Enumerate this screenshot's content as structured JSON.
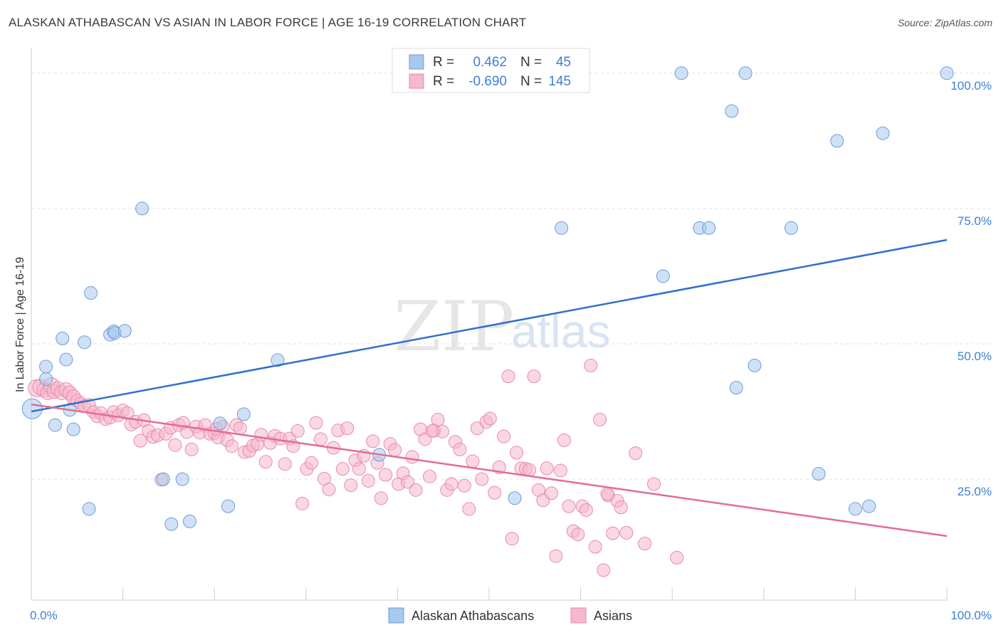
{
  "title": "ALASKAN ATHABASCAN VS ASIAN IN LABOR FORCE | AGE 16-19 CORRELATION CHART",
  "source": "Source: ZipAtlas.com",
  "watermark": {
    "zip": "ZIP",
    "atlas": "atlas"
  },
  "stats": {
    "r_label": "R =",
    "n_label": "N =",
    "series1": {
      "r": "0.462",
      "n": "45"
    },
    "series2": {
      "r": "-0.690",
      "n": "145"
    }
  },
  "colors": {
    "blue_fill": "#a9c8ee",
    "blue_stroke": "#6a9ed8",
    "blue_line": "#2f6fcf",
    "pink_fill": "#f6b8cc",
    "pink_stroke": "#e98aa9",
    "pink_line": "#e46a95",
    "tick_text": "#3d7fd6",
    "grid": "#e2e2e2"
  },
  "chart_data": {
    "type": "scatter",
    "title": "ALASKAN ATHABASCAN VS ASIAN IN LABOR FORCE | AGE 16-19 CORRELATION CHART",
    "xlabel": "",
    "ylabel": "In Labor Force | Age 16-19",
    "xlim": [
      0,
      100
    ],
    "ylim": [
      2,
      103
    ],
    "x_tick_labels": [
      "0.0%",
      "100.0%"
    ],
    "y_ticks": [
      25,
      50,
      75,
      100
    ],
    "y_tick_labels": [
      "25.0%",
      "50.0%",
      "75.0%",
      "100.0%"
    ],
    "legend": [
      "Alaskan Athabascans",
      "Asians"
    ],
    "series": [
      {
        "name": "Alaskan Athabascans",
        "color": "#a9c8ee",
        "trend": {
          "x0": 0,
          "y0": 37.5,
          "x1": 100,
          "y1": 69.2
        },
        "points": [
          [
            0.1,
            38.0,
            14
          ],
          [
            1.6,
            45.8,
            9
          ],
          [
            1.6,
            43.5,
            9
          ],
          [
            2.6,
            35.0,
            9
          ],
          [
            3.4,
            51.0,
            9
          ],
          [
            3.8,
            47.1,
            9
          ],
          [
            4.2,
            37.8,
            9
          ],
          [
            4.6,
            34.2,
            9
          ],
          [
            5.8,
            50.3,
            9
          ],
          [
            6.3,
            19.5,
            9
          ],
          [
            6.5,
            59.4,
            9
          ],
          [
            8.6,
            51.7,
            9
          ],
          [
            9.0,
            52.3,
            9
          ],
          [
            9.1,
            52.0,
            9
          ],
          [
            10.2,
            52.4,
            9
          ],
          [
            12.1,
            75.0,
            9
          ],
          [
            14.4,
            25.0,
            9
          ],
          [
            15.3,
            16.7,
            9
          ],
          [
            16.5,
            25.0,
            9
          ],
          [
            17.3,
            17.2,
            9
          ],
          [
            20.6,
            35.3,
            9
          ],
          [
            21.5,
            20.0,
            9
          ],
          [
            23.2,
            37.0,
            9
          ],
          [
            26.9,
            47.0,
            9
          ],
          [
            38.0,
            29.5,
            9
          ],
          [
            52.8,
            21.5,
            9
          ],
          [
            57.9,
            71.4,
            9
          ],
          [
            69.0,
            62.5,
            9
          ],
          [
            71.0,
            100.0,
            9
          ],
          [
            73.0,
            71.4,
            9
          ],
          [
            74.0,
            71.4,
            9
          ],
          [
            76.5,
            93.0,
            9
          ],
          [
            77.0,
            41.9,
            9
          ],
          [
            78.0,
            100.0,
            9
          ],
          [
            79.0,
            46.0,
            9
          ],
          [
            83.0,
            71.4,
            9
          ],
          [
            86.0,
            26.0,
            9
          ],
          [
            88.0,
            87.5,
            9
          ],
          [
            90.0,
            19.5,
            9
          ],
          [
            91.5,
            20.0,
            9
          ],
          [
            93.0,
            88.9,
            9
          ],
          [
            100.0,
            100.0,
            9
          ]
        ]
      },
      {
        "name": "Asians",
        "color": "#f6b8cc",
        "trend": {
          "x0": 0,
          "y0": 38.8,
          "x1": 100,
          "y1": 14.5
        },
        "points": [
          [
            0.6,
            41.8,
            12
          ],
          [
            1.0,
            42.0,
            11
          ],
          [
            1.4,
            41.5,
            10
          ],
          [
            1.8,
            41.0,
            10
          ],
          [
            2.2,
            42.3,
            11
          ],
          [
            2.5,
            41.2,
            10
          ],
          [
            2.9,
            41.7,
            10
          ],
          [
            3.3,
            41.0,
            10
          ],
          [
            3.8,
            41.5,
            10
          ],
          [
            4.2,
            40.9,
            10
          ],
          [
            4.6,
            40.2,
            10
          ],
          [
            5.0,
            39.5,
            9
          ],
          [
            5.4,
            39.0,
            9
          ],
          [
            5.8,
            38.5,
            9
          ],
          [
            6.3,
            38.7,
            9
          ],
          [
            6.8,
            37.4,
            9
          ],
          [
            7.2,
            36.6,
            9
          ],
          [
            7.6,
            37.2,
            9
          ],
          [
            8.1,
            36.1,
            9
          ],
          [
            8.6,
            36.4,
            9
          ],
          [
            9.0,
            37.4,
            9
          ],
          [
            9.5,
            36.8,
            9
          ],
          [
            10.0,
            37.7,
            9
          ],
          [
            10.5,
            37.2,
            9
          ],
          [
            10.9,
            35.1,
            9
          ],
          [
            11.4,
            35.6,
            9
          ],
          [
            11.9,
            32.1,
            9
          ],
          [
            12.3,
            35.9,
            9
          ],
          [
            12.8,
            33.9,
            9
          ],
          [
            13.3,
            32.8,
            9
          ],
          [
            13.8,
            33.1,
            9
          ],
          [
            14.2,
            24.9,
            9
          ],
          [
            14.7,
            33.4,
            9
          ],
          [
            15.2,
            34.5,
            9
          ],
          [
            15.7,
            31.3,
            9
          ],
          [
            16.1,
            35.0,
            9
          ],
          [
            16.6,
            35.4,
            9
          ],
          [
            17.0,
            33.7,
            9
          ],
          [
            17.5,
            30.5,
            9
          ],
          [
            18.0,
            34.7,
            9
          ],
          [
            18.4,
            33.6,
            9
          ],
          [
            19.0,
            35.0,
            9
          ],
          [
            19.5,
            33.4,
            9
          ],
          [
            20.0,
            33.5,
            9
          ],
          [
            20.4,
            32.7,
            9
          ],
          [
            20.9,
            34.7,
            9
          ],
          [
            21.4,
            32.2,
            9
          ],
          [
            21.9,
            31.1,
            9
          ],
          [
            22.4,
            35.0,
            9
          ],
          [
            22.8,
            34.4,
            9
          ],
          [
            23.3,
            30.0,
            9
          ],
          [
            23.8,
            30.2,
            9
          ],
          [
            24.2,
            31.2,
            9
          ],
          [
            24.7,
            31.5,
            9
          ],
          [
            25.1,
            33.2,
            9
          ],
          [
            25.6,
            28.2,
            9
          ],
          [
            26.1,
            31.7,
            9
          ],
          [
            26.6,
            33.0,
            9
          ],
          [
            27.2,
            32.5,
            9
          ],
          [
            27.7,
            27.8,
            9
          ],
          [
            28.2,
            32.5,
            9
          ],
          [
            28.6,
            31.1,
            9
          ],
          [
            29.1,
            33.9,
            9
          ],
          [
            29.6,
            20.5,
            9
          ],
          [
            30.1,
            26.9,
            9
          ],
          [
            30.6,
            28.0,
            9
          ],
          [
            31.1,
            35.4,
            9
          ],
          [
            31.6,
            32.4,
            9
          ],
          [
            32.0,
            25.1,
            9
          ],
          [
            32.5,
            23.1,
            9
          ],
          [
            33.0,
            30.8,
            9
          ],
          [
            33.5,
            34.0,
            9
          ],
          [
            34.0,
            26.9,
            9
          ],
          [
            34.5,
            34.4,
            9
          ],
          [
            34.9,
            23.9,
            9
          ],
          [
            35.4,
            28.5,
            9
          ],
          [
            35.8,
            26.9,
            9
          ],
          [
            36.3,
            29.3,
            9
          ],
          [
            36.8,
            24.7,
            9
          ],
          [
            37.3,
            32.0,
            9
          ],
          [
            37.8,
            28.0,
            9
          ],
          [
            38.2,
            21.5,
            9
          ],
          [
            38.7,
            25.8,
            9
          ],
          [
            39.2,
            31.5,
            9
          ],
          [
            39.7,
            30.4,
            9
          ],
          [
            40.1,
            24.1,
            9
          ],
          [
            40.6,
            26.1,
            9
          ],
          [
            41.1,
            24.5,
            9
          ],
          [
            41.6,
            29.1,
            9
          ],
          [
            42.0,
            23.0,
            9
          ],
          [
            42.5,
            34.2,
            9
          ],
          [
            43.0,
            32.4,
            9
          ],
          [
            43.5,
            25.5,
            9
          ],
          [
            44.0,
            34.0,
            9
          ],
          [
            44.4,
            36.0,
            9
          ],
          [
            44.9,
            33.8,
            9
          ],
          [
            45.4,
            23.0,
            9
          ],
          [
            45.9,
            24.1,
            9
          ],
          [
            46.3,
            31.9,
            9
          ],
          [
            46.8,
            30.5,
            9
          ],
          [
            47.3,
            23.8,
            9
          ],
          [
            47.8,
            19.5,
            9
          ],
          [
            48.2,
            28.3,
            9
          ],
          [
            48.7,
            34.4,
            9
          ],
          [
            49.2,
            25.0,
            9
          ],
          [
            49.7,
            35.6,
            9
          ],
          [
            50.1,
            36.2,
            9
          ],
          [
            50.6,
            22.5,
            9
          ],
          [
            51.1,
            27.2,
            9
          ],
          [
            51.6,
            32.9,
            9
          ],
          [
            52.1,
            44.0,
            9
          ],
          [
            52.5,
            14.0,
            9
          ],
          [
            53.0,
            29.9,
            9
          ],
          [
            53.5,
            27.0,
            9
          ],
          [
            54.0,
            26.9,
            9
          ],
          [
            54.4,
            26.7,
            9
          ],
          [
            54.9,
            44.0,
            9
          ],
          [
            55.4,
            23.0,
            9
          ],
          [
            55.9,
            21.1,
            9
          ],
          [
            56.3,
            27.0,
            9
          ],
          [
            56.8,
            22.4,
            9
          ],
          [
            57.3,
            10.8,
            9
          ],
          [
            57.8,
            26.6,
            9
          ],
          [
            58.2,
            32.2,
            9
          ],
          [
            58.7,
            20.0,
            9
          ],
          [
            59.2,
            15.4,
            9
          ],
          [
            59.7,
            14.8,
            9
          ],
          [
            60.2,
            20.0,
            9
          ],
          [
            60.6,
            19.3,
            9
          ],
          [
            61.1,
            46.0,
            9
          ],
          [
            61.6,
            12.5,
            9
          ],
          [
            62.1,
            36.0,
            9
          ],
          [
            62.5,
            8.2,
            9
          ],
          [
            63.0,
            22.0,
            9
          ],
          [
            63.5,
            15.0,
            9
          ],
          [
            64.0,
            21.0,
            9
          ],
          [
            64.4,
            19.8,
            9
          ],
          [
            65.0,
            15.1,
            9
          ],
          [
            66.0,
            29.8,
            9
          ],
          [
            67.0,
            13.1,
            9
          ],
          [
            68.0,
            24.1,
            9
          ],
          [
            70.5,
            10.5,
            9
          ],
          [
            62.9,
            22.3,
            9
          ],
          [
            43.8,
            33.9,
            9
          ],
          [
            20.2,
            34.3,
            9
          ]
        ]
      }
    ]
  }
}
